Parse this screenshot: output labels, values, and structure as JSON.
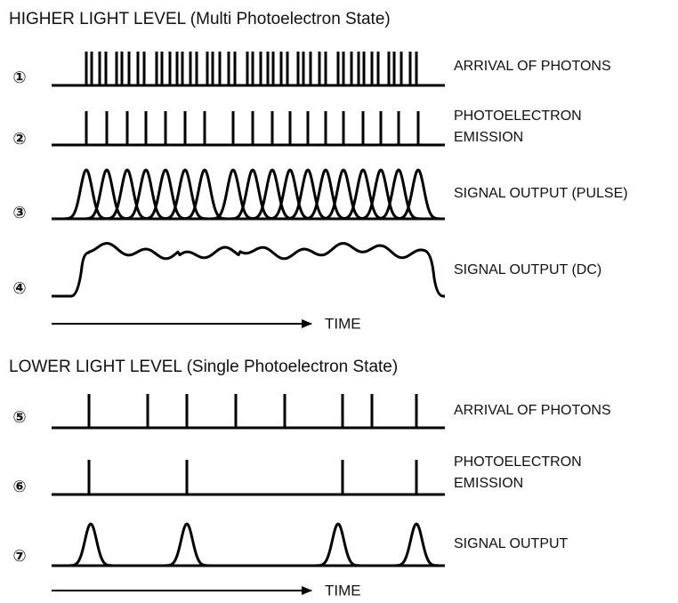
{
  "sections": [
    {
      "title": "HIGHER LIGHT LEVEL  (Multi Photoelectron State)",
      "rows": [
        {
          "number": "①",
          "label": [
            "ARRIVAL OF PHOTONS"
          ]
        },
        {
          "number": "②",
          "label": [
            "PHOTOELECTRON",
            "EMISSION"
          ]
        },
        {
          "number": "③",
          "label": [
            "SIGNAL OUTPUT (PULSE)"
          ]
        },
        {
          "number": "④",
          "label": [
            "SIGNAL OUTPUT (DC)"
          ]
        }
      ],
      "axis_label": "TIME"
    },
    {
      "title": "LOWER LIGHT LEVEL (Single Photoelectron State)",
      "rows": [
        {
          "number": "⑤",
          "label": [
            "ARRIVAL OF PHOTONS"
          ]
        },
        {
          "number": "⑥",
          "label": [
            "PHOTOELECTRON",
            "EMISSION"
          ]
        },
        {
          "number": "⑦",
          "label": [
            "SIGNAL OUTPUT"
          ]
        }
      ],
      "axis_label": "TIME"
    }
  ]
}
